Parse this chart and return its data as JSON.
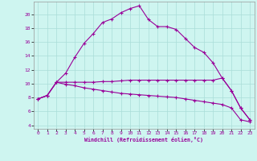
{
  "xlabel": "Windchill (Refroidissement éolien,°C)",
  "background_color": "#cef5f0",
  "grid_color": "#aaddd8",
  "line_color": "#990099",
  "xlim": [
    -0.5,
    23.5
  ],
  "ylim": [
    3.5,
    21.8
  ],
  "xticks": [
    0,
    1,
    2,
    3,
    4,
    5,
    6,
    7,
    8,
    9,
    10,
    11,
    12,
    13,
    14,
    15,
    16,
    17,
    18,
    19,
    20,
    21,
    22,
    23
  ],
  "yticks": [
    4,
    6,
    8,
    10,
    12,
    14,
    16,
    18,
    20
  ],
  "series1_x": [
    0,
    1,
    2,
    3,
    4,
    5,
    6,
    7,
    8,
    9,
    10,
    11,
    12,
    13,
    14,
    15,
    16,
    17,
    18,
    19,
    20,
    21,
    22,
    23
  ],
  "series1_y": [
    7.8,
    8.3,
    10.2,
    11.5,
    13.8,
    15.8,
    17.2,
    18.8,
    19.3,
    20.2,
    20.8,
    21.2,
    19.2,
    18.2,
    18.2,
    17.8,
    16.5,
    15.2,
    14.5,
    13.0,
    10.8,
    9.0,
    6.5,
    4.8
  ],
  "series2_x": [
    0,
    1,
    2,
    3,
    4,
    5,
    6,
    7,
    8,
    9,
    10,
    11,
    12,
    13,
    14,
    15,
    16,
    17,
    18,
    19,
    20,
    21,
    22,
    23
  ],
  "series2_y": [
    7.8,
    8.3,
    10.2,
    10.2,
    10.2,
    10.2,
    10.2,
    10.3,
    10.3,
    10.4,
    10.5,
    10.5,
    10.5,
    10.5,
    10.5,
    10.5,
    10.5,
    10.5,
    10.5,
    10.5,
    10.8,
    9.0,
    6.5,
    4.8
  ],
  "series3_x": [
    0,
    1,
    2,
    3,
    4,
    5,
    6,
    7,
    8,
    9,
    10,
    11,
    12,
    13,
    14,
    15,
    16,
    17,
    18,
    19,
    20,
    21,
    22,
    23
  ],
  "series3_y": [
    7.8,
    8.3,
    10.2,
    9.9,
    9.7,
    9.4,
    9.2,
    9.0,
    8.8,
    8.6,
    8.5,
    8.4,
    8.3,
    8.2,
    8.1,
    8.0,
    7.8,
    7.6,
    7.4,
    7.2,
    7.0,
    6.5,
    4.8,
    4.5
  ],
  "marker": "+",
  "marker_size": 3,
  "linewidth": 0.8
}
